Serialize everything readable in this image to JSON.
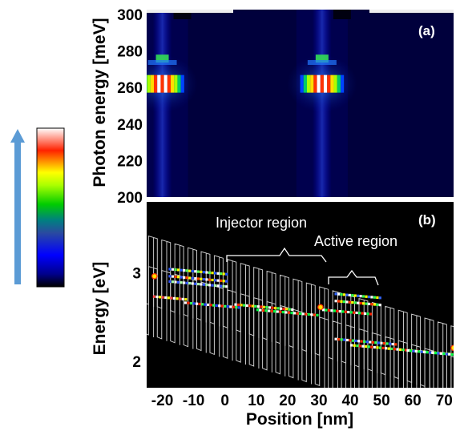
{
  "chart_data": [
    {
      "type": "heatmap",
      "panel": "(a)",
      "ylabel": "Photon energy [meV]",
      "ylim": [
        200,
        300
      ],
      "yticks": [
        200,
        220,
        240,
        260,
        280,
        300
      ],
      "xlabel": "",
      "hotspots": [
        {
          "x_nm": -20,
          "photon_energy_meV": 262,
          "intensity": 1.0
        },
        {
          "x_nm": 31,
          "photon_energy_meV": 262,
          "intensity": 1.0
        }
      ],
      "colormap": [
        "#000000",
        "#00008b",
        "#0000ff",
        "#008080",
        "#00ff00",
        "#ffff00",
        "#ff0000",
        "#ffffff"
      ]
    },
    {
      "type": "heatmap",
      "panel": "(b)",
      "xlabel": "Position [nm]",
      "ylabel": "Energy [eV]",
      "xlim": [
        -25,
        73
      ],
      "ylim": [
        1.7,
        3.8
      ],
      "xticks": [
        -20,
        -10,
        0,
        10,
        20,
        30,
        40,
        50,
        60,
        70
      ],
      "yticks": [
        2,
        3
      ],
      "annotations": [
        "Injector region",
        "Active region"
      ],
      "grid": false
    }
  ],
  "colorbar": {
    "direction_arrow": "up",
    "arrow_color": "#5b9bd5"
  }
}
